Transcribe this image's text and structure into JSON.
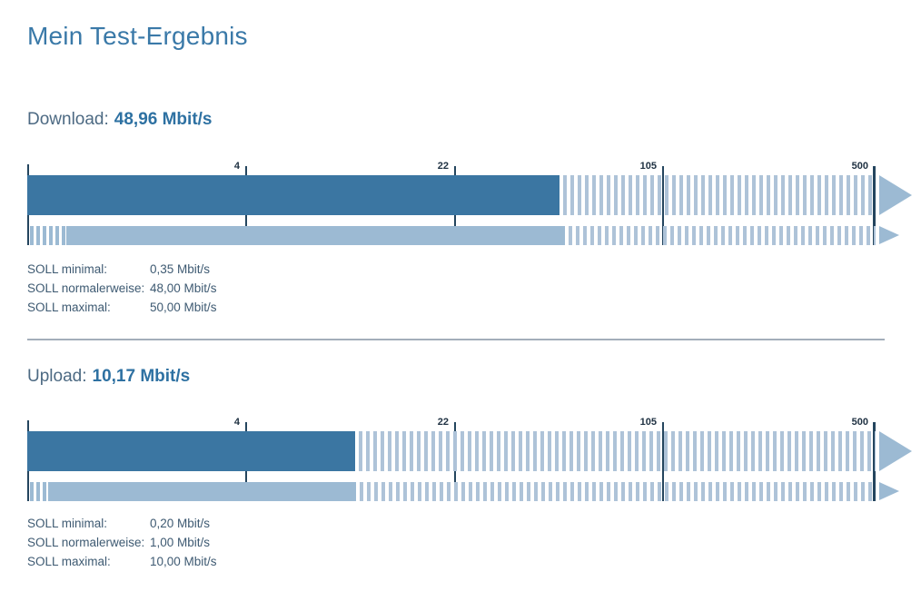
{
  "title": "Mein Test-Ergebnis",
  "unit": "Mbit/s",
  "colors": {
    "title_text": "#3a79a8",
    "heading_label_text": "#4d6a83",
    "heading_value_text": "#2e71a2",
    "soll_text": "#3e5a72",
    "tick_text": "#203243",
    "tick_line": "#24455e",
    "bar_dark": "#3b76a2",
    "bar_light": "#9cbad3",
    "stripe": "#aec3d8",
    "divider": "#a3aeba"
  },
  "sections": [
    {
      "id": "download",
      "label": "Download:",
      "value": "48,96 Mbit/s",
      "soll": [
        {
          "label": "SOLL minimal:",
          "value": "0,35 Mbit/s"
        },
        {
          "label": "SOLL normalerweise:",
          "value": "48,00 Mbit/s"
        },
        {
          "label": "SOLL maximal:",
          "value": "50,00 Mbit/s"
        }
      ],
      "gauge": {
        "ticks": [
          {
            "label": "4",
            "pos": 0.259
          },
          {
            "label": "22",
            "pos": 0.505
          },
          {
            "label": "105",
            "pos": 0.751
          },
          {
            "label": "500",
            "pos": 1.0
          }
        ],
        "measured_pos": 0.627,
        "soll_min_pos": 0.046,
        "soll_max_pos": 0.634
      }
    },
    {
      "id": "upload",
      "label": "Upload:",
      "value": "10,17 Mbit/s",
      "soll": [
        {
          "label": "SOLL minimal:",
          "value": "0,20 Mbit/s"
        },
        {
          "label": "SOLL normalerweise:",
          "value": "1,00 Mbit/s"
        },
        {
          "label": "SOLL maximal:",
          "value": "10,00 Mbit/s"
        }
      ],
      "gauge": {
        "ticks": [
          {
            "label": "4",
            "pos": 0.259
          },
          {
            "label": "22",
            "pos": 0.505
          },
          {
            "label": "105",
            "pos": 0.751
          },
          {
            "label": "500",
            "pos": 1.0
          }
        ],
        "measured_pos": 0.387,
        "soll_min_pos": 0.025,
        "soll_max_pos": 0.388
      }
    }
  ],
  "chart_data": [
    {
      "type": "bar",
      "title": "Download",
      "unit": "Mbit/s",
      "scale": "log",
      "scale_ticks": [
        4,
        22,
        105,
        500
      ],
      "measured": 48.96,
      "soll_minimal": 0.35,
      "soll_normal": 48.0,
      "soll_maximal": 50.0
    },
    {
      "type": "bar",
      "title": "Upload",
      "unit": "Mbit/s",
      "scale": "log",
      "scale_ticks": [
        4,
        22,
        105,
        500
      ],
      "measured": 10.17,
      "soll_minimal": 0.2,
      "soll_normal": 1.0,
      "soll_maximal": 10.0
    }
  ]
}
